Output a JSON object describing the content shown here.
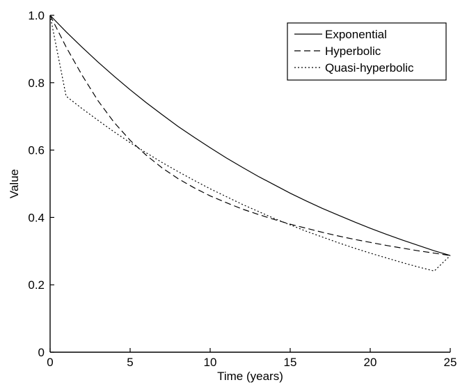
{
  "chart_data": {
    "type": "line",
    "xlabel": "Time (years)",
    "ylabel": "Value",
    "xlim": [
      0,
      25
    ],
    "ylim": [
      0,
      1.0
    ],
    "xticks": [
      0,
      5,
      10,
      15,
      20,
      25
    ],
    "yticks": [
      0,
      0.2,
      0.4,
      0.6,
      0.8,
      1.0
    ],
    "xtick_labels": [
      "0",
      "5",
      "10",
      "15",
      "20",
      "25"
    ],
    "ytick_labels": [
      "0",
      "0.2",
      "0.4",
      "0.6",
      "0.8",
      "1.0"
    ],
    "grid": false,
    "legend_position": "top-right",
    "x": [
      0,
      1,
      2,
      3,
      4,
      5,
      6,
      7,
      8,
      9,
      10,
      11,
      12,
      13,
      14,
      15,
      16,
      17,
      18,
      19,
      20,
      21,
      22,
      23,
      24,
      25
    ],
    "series": [
      {
        "name": "Exponential",
        "dash": "solid",
        "color": "#000000",
        "values": [
          1.0,
          0.951,
          0.905,
          0.861,
          0.819,
          0.779,
          0.741,
          0.705,
          0.67,
          0.638,
          0.607,
          0.577,
          0.549,
          0.522,
          0.497,
          0.472,
          0.449,
          0.427,
          0.407,
          0.387,
          0.368,
          0.35,
          0.333,
          0.317,
          0.301,
          0.287
        ]
      },
      {
        "name": "Hyperbolic",
        "dash": "dashed",
        "color": "#000000",
        "values": [
          1.0,
          0.906,
          0.822,
          0.746,
          0.682,
          0.629,
          0.585,
          0.547,
          0.515,
          0.488,
          0.464,
          0.444,
          0.425,
          0.409,
          0.394,
          0.38,
          0.368,
          0.356,
          0.345,
          0.335,
          0.326,
          0.317,
          0.309,
          0.301,
          0.294,
          0.287
        ]
      },
      {
        "name": "Quasi-hyperbolic",
        "dash": "dotted",
        "color": "#000000",
        "values": [
          1.0,
          0.76,
          0.723,
          0.688,
          0.654,
          0.622,
          0.592,
          0.563,
          0.536,
          0.51,
          0.485,
          0.462,
          0.439,
          0.418,
          0.397,
          0.378,
          0.359,
          0.342,
          0.325,
          0.309,
          0.294,
          0.28,
          0.266,
          0.253,
          0.241,
          0.287
        ]
      }
    ]
  }
}
